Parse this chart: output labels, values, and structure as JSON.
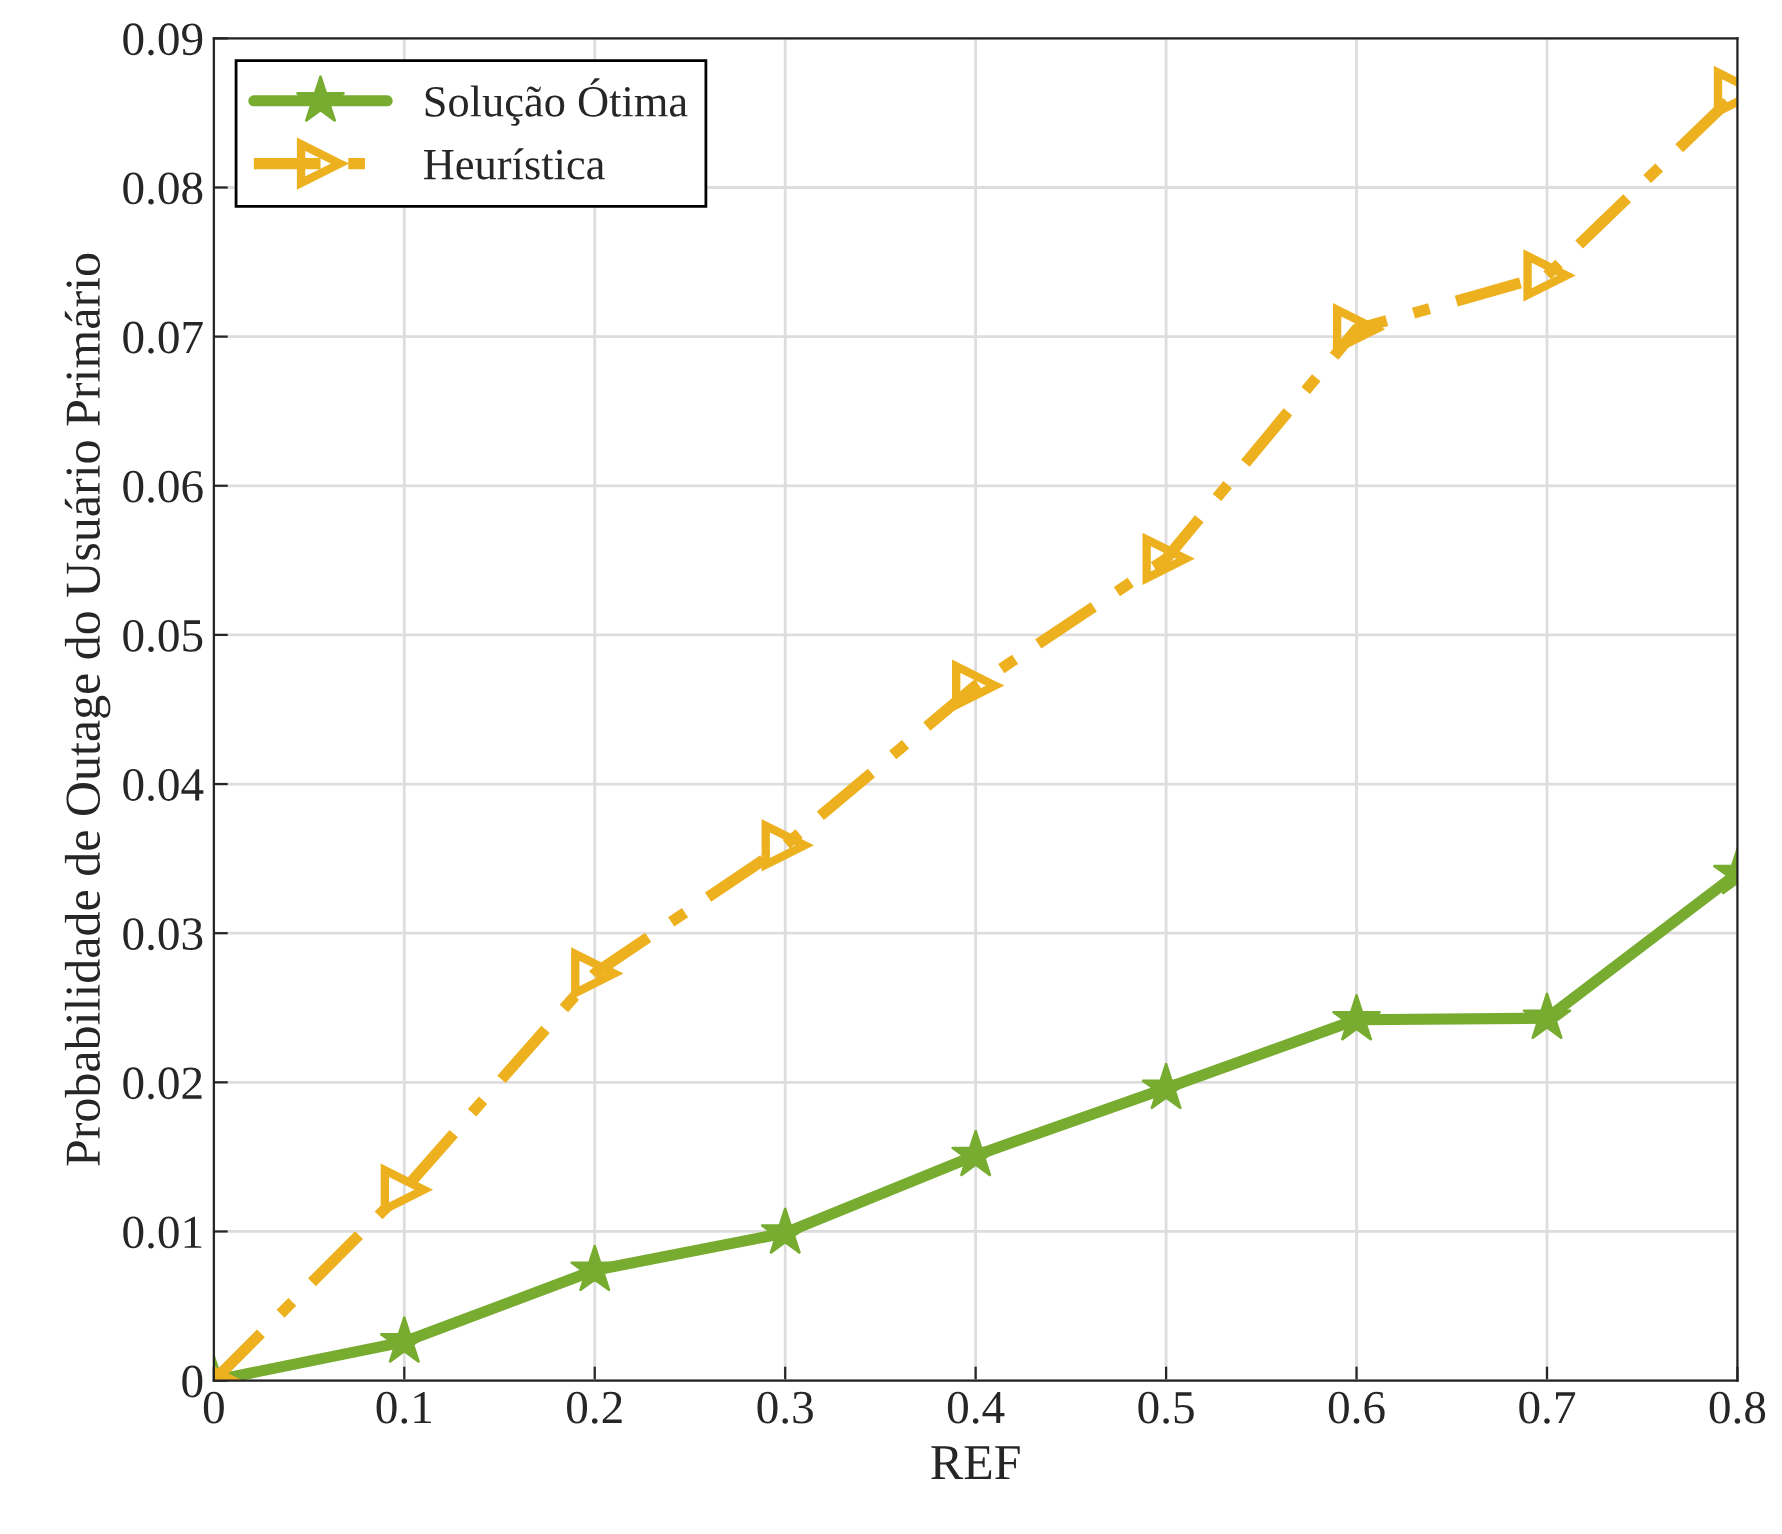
{
  "chart_data": {
    "type": "line",
    "xlabel": "REF",
    "ylabel": "Probabilidade de Outage do Usuário Primário",
    "x": [
      0,
      0.1,
      0.2,
      0.3,
      0.4,
      0.5,
      0.6,
      0.7,
      0.8
    ],
    "series": [
      {
        "name": "Solução Ótima",
        "color": "#77ac30",
        "marker": "star",
        "line_style": "solid",
        "values": [
          0,
          0.0026,
          0.0074,
          0.0099,
          0.0151,
          0.0196,
          0.0242,
          0.0243,
          0.034
        ]
      },
      {
        "name": "Heurística",
        "color": "#edb120",
        "marker": "triangle",
        "line_style": "dashed",
        "values": [
          0,
          0.0128,
          0.0273,
          0.0359,
          0.0466,
          0.0551,
          0.0705,
          0.0741,
          0.0864
        ]
      }
    ],
    "xlim": [
      0,
      0.8
    ],
    "xticks": [
      0,
      0.1,
      0.2,
      0.3,
      0.4,
      0.5,
      0.6,
      0.7,
      0.8
    ],
    "ylim": [
      0,
      0.09
    ],
    "yticks": [
      0,
      0.01,
      0.02,
      0.03,
      0.04,
      0.05,
      0.06,
      0.07,
      0.08,
      0.09
    ],
    "grid": true,
    "legend": "top left"
  }
}
